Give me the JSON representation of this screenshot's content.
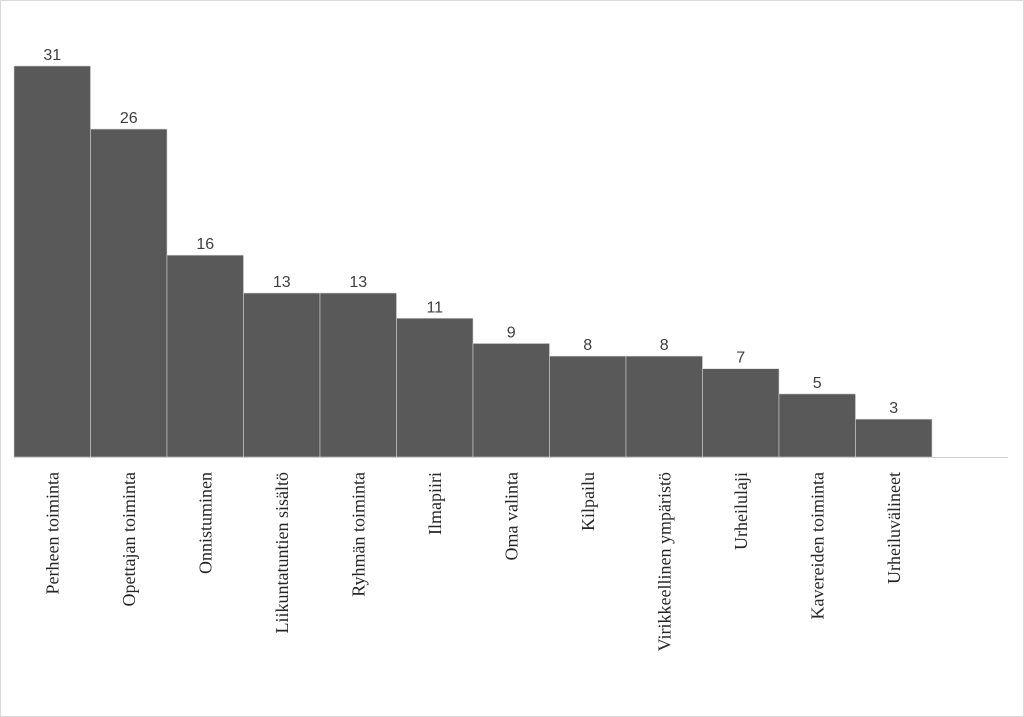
{
  "chart_data": {
    "type": "bar",
    "title": "",
    "xlabel": "",
    "ylabel": "",
    "ylim": [
      0,
      31
    ],
    "grid": false,
    "legend": "none",
    "bar_color": "#595959",
    "categories": [
      "Perheen toiminta",
      "Opettajan toiminta",
      "Onnistuminen",
      "Liikuntatuntien sisältö",
      "Ryhmän toiminta",
      "Ilmapiiri",
      "Oma valinta",
      "Kilpailu",
      "Virikkeellinen ympäristö",
      "Urheilulaji",
      "Kavereiden toiminta",
      "Urheiluvälineet"
    ],
    "values": [
      31,
      26,
      16,
      13,
      13,
      11,
      9,
      8,
      8,
      7,
      5,
      3
    ]
  }
}
